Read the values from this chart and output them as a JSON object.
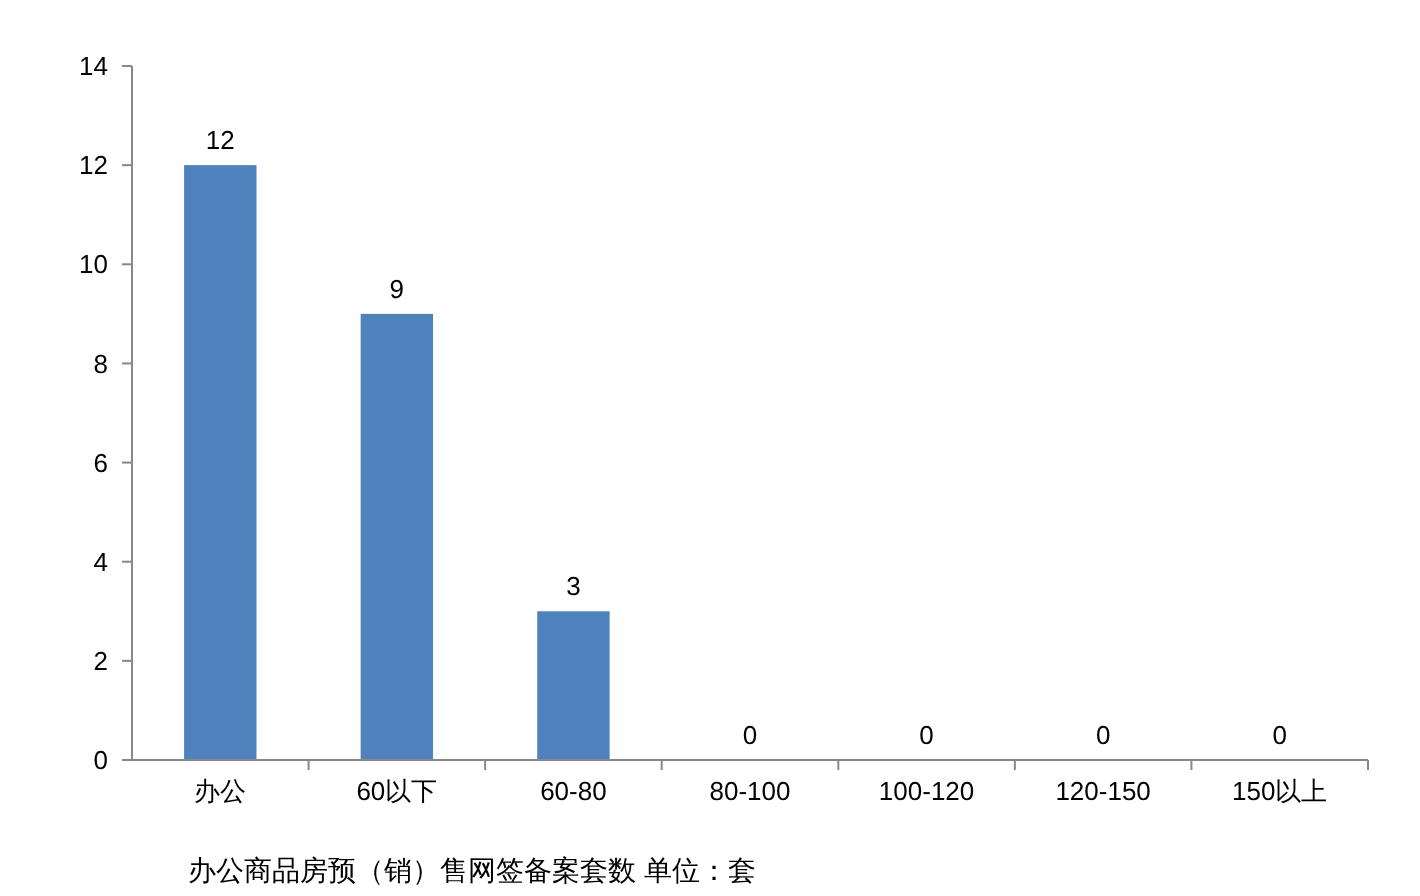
{
  "chart_data": {
    "type": "bar",
    "categories": [
      "办公",
      "60以下",
      "60-80",
      "80-100",
      "100-120",
      "120-150",
      "150以上"
    ],
    "values": [
      12,
      9,
      3,
      0,
      0,
      0,
      0
    ],
    "color": "#4f81bd",
    "ylim": [
      0,
      14
    ],
    "yticks": [
      0,
      2,
      4,
      6,
      8,
      10,
      12,
      14
    ],
    "grid": false,
    "data_labels": true,
    "annotations": [
      "办公商品房预（销）售网签备案套数 单位：套"
    ]
  }
}
